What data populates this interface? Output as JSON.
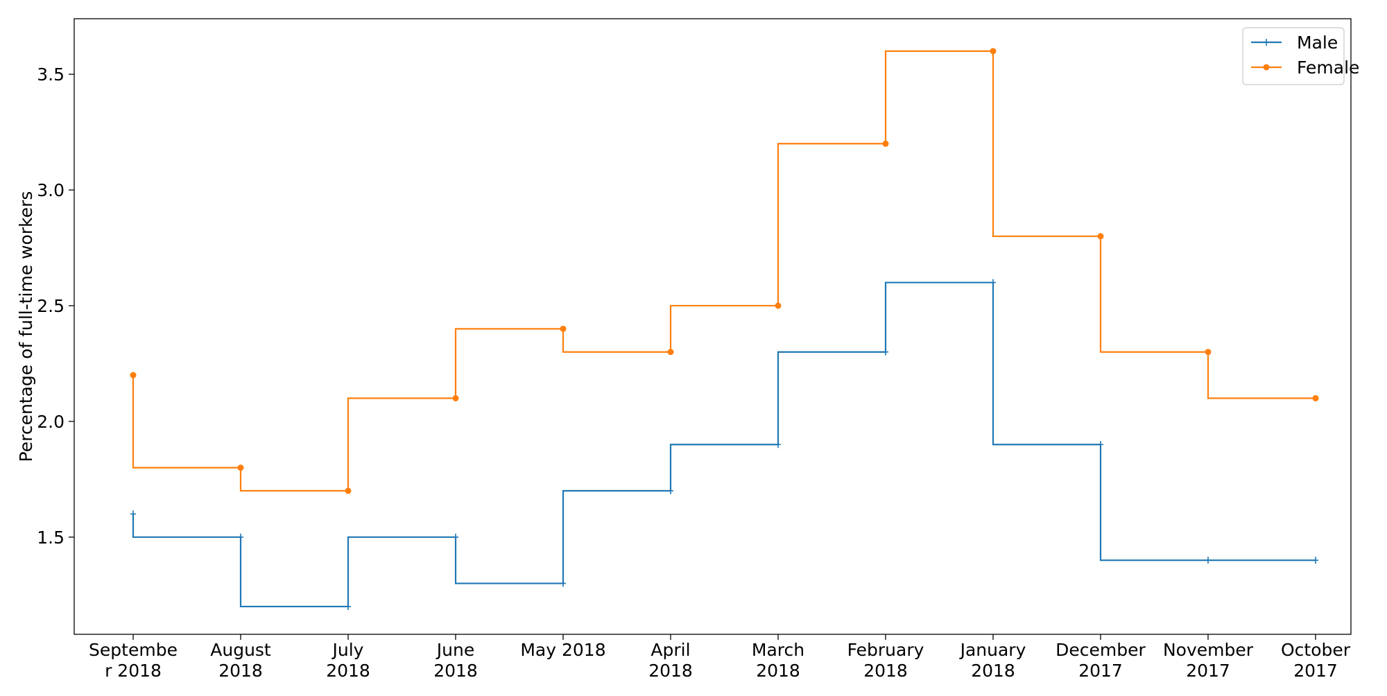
{
  "chart_data": {
    "type": "line",
    "drawstyle": "steps-pre",
    "title": "",
    "xlabel": "",
    "ylabel": "Percentage of full-time workers",
    "ylim": [
      1.08,
      3.74
    ],
    "yticks": [
      "1.5",
      "2.0",
      "2.5",
      "3.0",
      "3.5"
    ],
    "ytick_values": [
      1.5,
      2.0,
      2.5,
      3.0,
      3.5
    ],
    "grid": false,
    "legend_position": "top-right",
    "categories": [
      [
        "Septembe",
        "r 2018"
      ],
      [
        "August",
        "2018"
      ],
      [
        "July",
        "2018"
      ],
      [
        "June",
        "2018"
      ],
      [
        "May 2018"
      ],
      [
        "April",
        "2018"
      ],
      [
        "March",
        "2018"
      ],
      [
        "February",
        "2018"
      ],
      [
        "January",
        "2018"
      ],
      [
        "December",
        "2017"
      ],
      [
        "November",
        "2017"
      ],
      [
        "October",
        "2017"
      ]
    ],
    "series": [
      {
        "name": "Male",
        "color": "#1f77b4",
        "marker": "plus",
        "values": [
          1.6,
          1.5,
          1.2,
          1.5,
          1.3,
          1.7,
          1.9,
          2.3,
          2.6,
          1.9,
          1.4,
          1.4
        ]
      },
      {
        "name": "Female",
        "color": "#ff7f0e",
        "marker": "circle",
        "values": [
          2.2,
          1.8,
          1.7,
          2.1,
          2.4,
          2.3,
          2.5,
          3.2,
          3.6,
          2.8,
          2.3,
          2.1
        ]
      }
    ]
  }
}
